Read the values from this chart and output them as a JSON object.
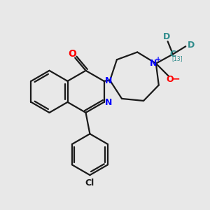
{
  "bg_color": "#e8e8e8",
  "bond_color": "#1a1a1a",
  "n_color": "#0000ff",
  "o_color": "#ff0000",
  "cd_color": "#2e8b8b",
  "cl_color": "#1a1a1a",
  "lw": 1.6,
  "figsize": [
    3.0,
    3.0
  ],
  "dpi": 100,
  "xlim": [
    0,
    10
  ],
  "ylim": [
    0,
    10
  ]
}
